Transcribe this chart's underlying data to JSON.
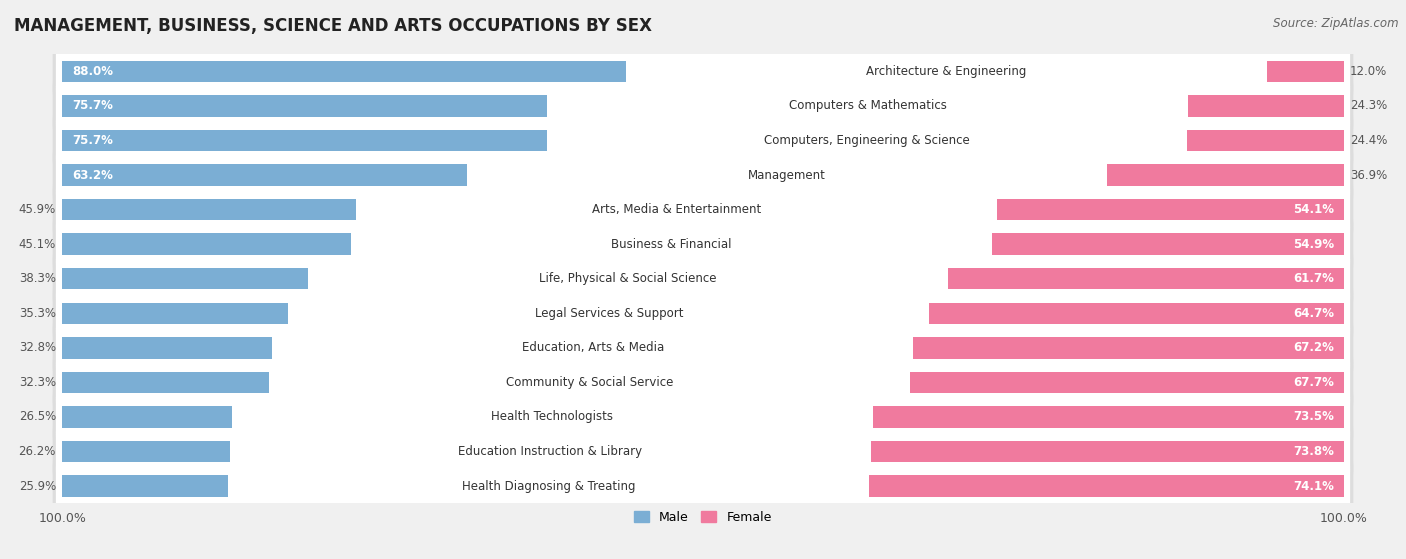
{
  "title": "MANAGEMENT, BUSINESS, SCIENCE AND ARTS OCCUPATIONS BY SEX",
  "source": "Source: ZipAtlas.com",
  "categories": [
    "Architecture & Engineering",
    "Computers & Mathematics",
    "Computers, Engineering & Science",
    "Management",
    "Arts, Media & Entertainment",
    "Business & Financial",
    "Life, Physical & Social Science",
    "Legal Services & Support",
    "Education, Arts & Media",
    "Community & Social Service",
    "Health Technologists",
    "Education Instruction & Library",
    "Health Diagnosing & Treating"
  ],
  "male_pct": [
    88.0,
    75.7,
    75.7,
    63.2,
    45.9,
    45.1,
    38.3,
    35.3,
    32.8,
    32.3,
    26.5,
    26.2,
    25.9
  ],
  "female_pct": [
    12.0,
    24.3,
    24.4,
    36.9,
    54.1,
    54.9,
    61.7,
    64.7,
    67.2,
    67.7,
    73.5,
    73.8,
    74.1
  ],
  "male_color": "#7baed4",
  "female_color": "#f07a9e",
  "bg_color": "#f0f0f0",
  "row_bg_color": "#ffffff",
  "row_shadow_color": "#dddddd",
  "title_fontsize": 12,
  "label_fontsize": 8.5,
  "cat_fontsize": 8.5,
  "tick_fontsize": 9,
  "source_fontsize": 8.5,
  "male_label_threshold": 50,
  "female_label_threshold": 50
}
